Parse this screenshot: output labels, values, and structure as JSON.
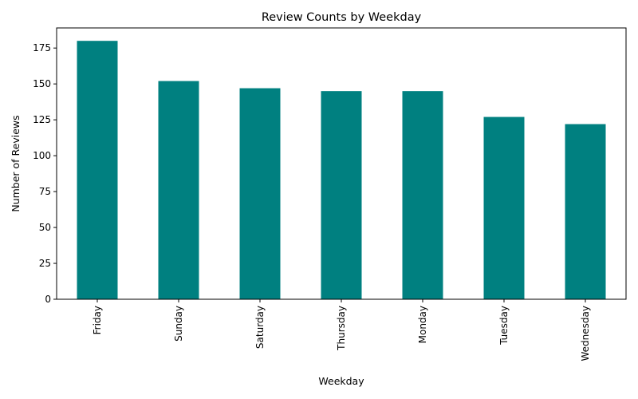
{
  "chart_data": {
    "type": "bar",
    "title": "Review Counts by Weekday",
    "xlabel": "Weekday",
    "ylabel": "Number of Reviews",
    "categories": [
      "Friday",
      "Sunday",
      "Saturday",
      "Thursday",
      "Monday",
      "Tuesday",
      "Wednesday"
    ],
    "values": [
      180,
      152,
      147,
      145,
      145,
      127,
      122
    ],
    "ylim": [
      0,
      189
    ],
    "yticks": [
      0,
      25,
      50,
      75,
      100,
      125,
      150,
      175
    ],
    "x_tick_rotation": "vertical",
    "grid": false,
    "legend": "none",
    "bar_color": "#008080"
  }
}
